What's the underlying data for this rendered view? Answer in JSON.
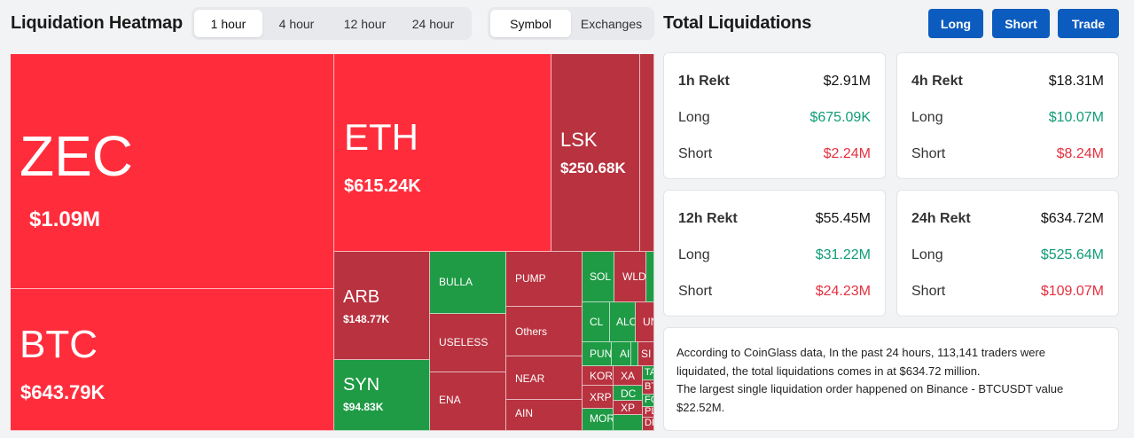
{
  "header": {
    "title": "Liquidation Heatmap",
    "time_options": [
      "1 hour",
      "4 hour",
      "12 hour",
      "24 hour"
    ],
    "time_selected": "1 hour",
    "view_options": [
      "Symbol",
      "Exchanges"
    ],
    "view_selected": "Symbol"
  },
  "heatmap": {
    "tiles": [
      {
        "symbol": "ZEC",
        "value": "$1.09M",
        "side": "short"
      },
      {
        "symbol": "BTC",
        "value": "$643.79K",
        "side": "short"
      },
      {
        "symbol": "ETH",
        "value": "$615.24K",
        "side": "short"
      },
      {
        "symbol": "LSK",
        "value": "$250.68K",
        "side": "short"
      },
      {
        "symbol": "ARB",
        "value": "$148.77K",
        "side": "short"
      },
      {
        "symbol": "SYN",
        "value": "$94.83K",
        "side": "long"
      },
      {
        "symbol": "BULLA",
        "value": "",
        "side": "long"
      },
      {
        "symbol": "USELESS",
        "value": "",
        "side": "short"
      },
      {
        "symbol": "ENA",
        "value": "",
        "side": "short"
      },
      {
        "symbol": "PUMP",
        "value": "",
        "side": "short"
      },
      {
        "symbol": "Others",
        "value": "",
        "side": "short"
      },
      {
        "symbol": "NEAR",
        "value": "",
        "side": "short"
      },
      {
        "symbol": "AIN",
        "value": "",
        "side": "short"
      },
      {
        "symbol": "SOL",
        "value": "",
        "side": "long"
      },
      {
        "symbol": "WLD",
        "value": "",
        "side": "short"
      },
      {
        "symbol": "CL",
        "value": "",
        "side": "long"
      },
      {
        "symbol": "ALC",
        "value": "",
        "side": "long"
      },
      {
        "symbol": "UN",
        "value": "",
        "side": "short"
      },
      {
        "symbol": "PUN",
        "value": "",
        "side": "long"
      },
      {
        "symbol": "AI",
        "value": "",
        "side": "long"
      },
      {
        "symbol": "SI",
        "value": "",
        "side": "short"
      },
      {
        "symbol": "KOR",
        "value": "",
        "side": "short"
      },
      {
        "symbol": "XA",
        "value": "",
        "side": "short"
      },
      {
        "symbol": "TA",
        "value": "",
        "side": "long"
      },
      {
        "symbol": "DC",
        "value": "",
        "side": "long"
      },
      {
        "symbol": "BT",
        "value": "",
        "side": "short"
      },
      {
        "symbol": "XRP",
        "value": "",
        "side": "short"
      },
      {
        "symbol": "FC",
        "value": "",
        "side": "long"
      },
      {
        "symbol": "XP",
        "value": "",
        "side": "short"
      },
      {
        "symbol": "PL",
        "value": "",
        "side": "short"
      },
      {
        "symbol": "MOR",
        "value": "",
        "side": "long"
      },
      {
        "symbol": "DF",
        "value": "",
        "side": "short"
      }
    ]
  },
  "total": {
    "title": "Total Liquidations",
    "buttons": {
      "long": "Long",
      "short": "Short",
      "trade": "Trade"
    },
    "cards": [
      {
        "label": "1h Rekt",
        "total": "$2.91M",
        "long_label": "Long",
        "long": "$675.09K",
        "short_label": "Short",
        "short": "$2.24M"
      },
      {
        "label": "4h Rekt",
        "total": "$18.31M",
        "long_label": "Long",
        "long": "$10.07M",
        "short_label": "Short",
        "short": "$8.24M"
      },
      {
        "label": "12h Rekt",
        "total": "$55.45M",
        "long_label": "Long",
        "long": "$31.22M",
        "short_label": "Short",
        "short": "$24.23M"
      },
      {
        "label": "24h Rekt",
        "total": "$634.72M",
        "long_label": "Long",
        "long": "$525.64M",
        "short_label": "Short",
        "short": "$109.07M"
      }
    ],
    "summary": [
      "According to CoinGlass data, In the past 24 hours, 113,141 traders were",
      "liquidated, the total liquidations comes in at $634.72 million.",
      "The largest single liquidation order happened on Binance - BTCUSDT value",
      "$22.52M."
    ]
  },
  "colors": {
    "short_bright": "#ff2d3c",
    "short_dark": "#b8323f",
    "long": "#1f9b45",
    "positive_text": "#0f9d76",
    "negative_text": "#e4303f",
    "button": "#0c5cbf"
  }
}
